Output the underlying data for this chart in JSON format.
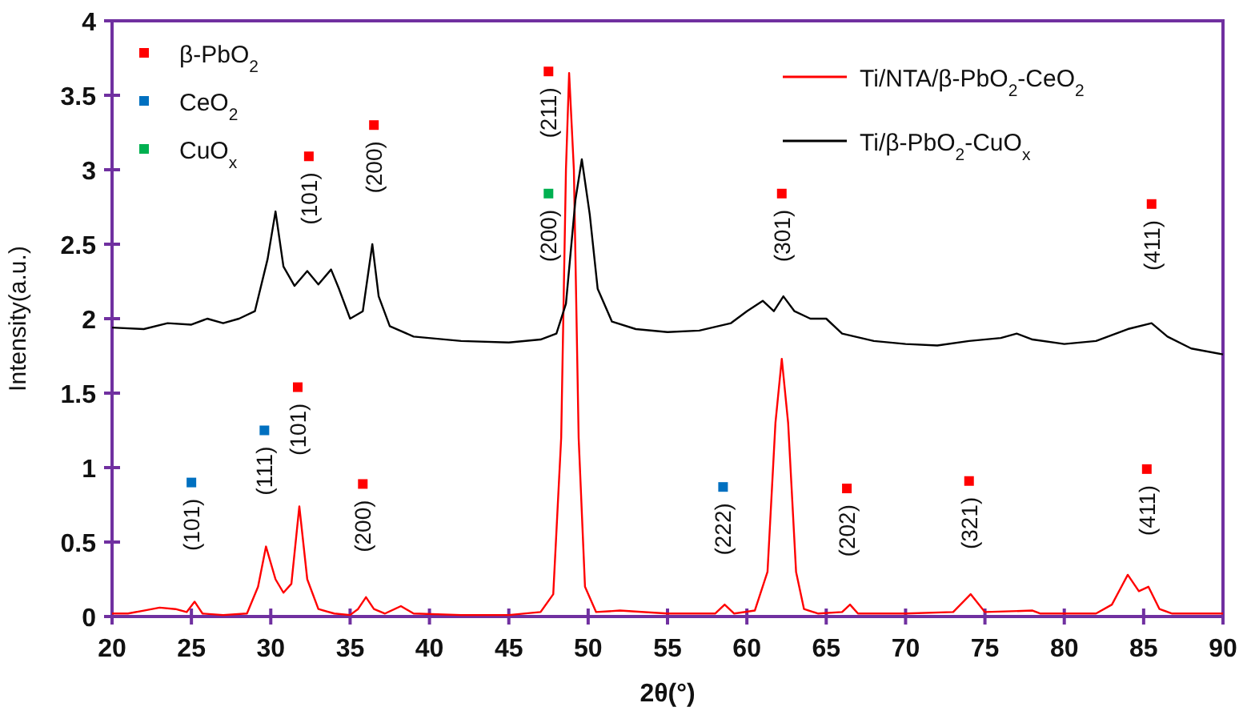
{
  "chart_data": {
    "type": "line",
    "xlabel": "2θ(°)",
    "ylabel": "Intensity(a.u.)",
    "xlim": [
      20,
      90
    ],
    "ylim": [
      0,
      4
    ],
    "xticks": [
      20,
      25,
      30,
      35,
      40,
      45,
      50,
      55,
      60,
      65,
      70,
      75,
      80,
      85,
      90
    ],
    "yticks": [
      0,
      0.5,
      1,
      1.5,
      2,
      2.5,
      3,
      3.5,
      4
    ],
    "legend": "top",
    "grid": false,
    "series": [
      {
        "name": "Ti/NTA/β-PbO$_{2}$-CeO$_{2}$",
        "color": "#ff0000",
        "x": [
          20,
          21,
          22,
          23,
          24,
          24.7,
          25.2,
          25.7,
          27,
          28.5,
          29.2,
          29.7,
          30.3,
          30.8,
          31.3,
          31.8,
          32.3,
          33,
          34,
          35,
          35.5,
          36,
          36.5,
          37.2,
          38.2,
          39,
          42,
          45,
          47,
          47.8,
          48.3,
          48.6,
          48.8,
          49.1,
          49.4,
          49.8,
          50.5,
          52,
          55,
          58,
          58.6,
          59.2,
          60.5,
          61.3,
          61.8,
          62.2,
          62.6,
          63.1,
          63.6,
          64.5,
          66,
          66.5,
          67,
          70,
          73,
          74.1,
          75,
          78,
          78.5,
          82,
          83,
          83.6,
          84,
          84.7,
          85.3,
          86,
          86.8,
          90
        ],
        "values": [
          0.02,
          0.02,
          0.04,
          0.06,
          0.05,
          0.03,
          0.1,
          0.02,
          0.01,
          0.02,
          0.2,
          0.47,
          0.25,
          0.16,
          0.22,
          0.74,
          0.25,
          0.05,
          0.02,
          0.01,
          0.05,
          0.13,
          0.05,
          0.02,
          0.07,
          0.02,
          0.01,
          0.01,
          0.03,
          0.15,
          1.2,
          3,
          3.65,
          3,
          1.2,
          0.2,
          0.03,
          0.04,
          0.02,
          0.02,
          0.08,
          0.02,
          0.04,
          0.3,
          1.3,
          1.73,
          1.3,
          0.3,
          0.05,
          0.02,
          0.03,
          0.08,
          0.02,
          0.02,
          0.03,
          0.15,
          0.03,
          0.04,
          0.02,
          0.02,
          0.08,
          0.2,
          0.28,
          0.17,
          0.2,
          0.05,
          0.02,
          0.02
        ]
      },
      {
        "name": "Ti/β-PbO$_{2}$-CuO$_{x}$",
        "color": "#000000",
        "x": [
          20,
          22,
          23.5,
          25,
          26,
          27,
          28,
          29,
          29.8,
          30.3,
          30.8,
          31.5,
          32.3,
          33,
          33.8,
          34.3,
          35,
          35.8,
          36.4,
          36.8,
          37.5,
          39,
          42,
          45,
          47,
          48,
          48.6,
          49.2,
          49.6,
          50.1,
          50.6,
          51.5,
          53,
          55,
          57,
          59,
          60,
          61,
          61.7,
          62.3,
          63,
          64,
          65,
          66,
          68,
          70,
          72,
          74,
          76,
          77,
          78,
          80,
          82,
          84,
          85.5,
          86.5,
          88,
          90
        ],
        "values": [
          1.94,
          1.93,
          1.97,
          1.96,
          2,
          1.97,
          2,
          2.05,
          2.4,
          2.72,
          2.35,
          2.22,
          2.32,
          2.23,
          2.33,
          2.2,
          2,
          2.05,
          2.5,
          2.15,
          1.95,
          1.88,
          1.85,
          1.84,
          1.86,
          1.9,
          2.1,
          2.8,
          3.07,
          2.7,
          2.2,
          1.98,
          1.93,
          1.91,
          1.92,
          1.97,
          2.05,
          2.12,
          2.05,
          2.15,
          2.05,
          2,
          2,
          1.9,
          1.85,
          1.83,
          1.82,
          1.85,
          1.87,
          1.9,
          1.86,
          1.83,
          1.85,
          1.93,
          1.97,
          1.88,
          1.8,
          1.76
        ]
      },
      {
        "type": "scatter",
        "name": "β-PbO$_{2}$",
        "color": "#ff0000",
        "marker": "square",
        "x": [
          32.4,
          36.5,
          47.5,
          62.2,
          85.5,
          31.7,
          35.8,
          66.3,
          74,
          85.2
        ],
        "values": [
          3.09,
          3.3,
          3.66,
          2.84,
          2.77,
          1.54,
          0.89,
          0.86,
          0.91,
          0.99
        ]
      },
      {
        "type": "scatter",
        "name": "CeO$_{2}$",
        "color": "#0070c0",
        "marker": "square",
        "x": [
          25,
          29.6,
          58.5
        ],
        "values": [
          0.9,
          1.25,
          0.87
        ]
      },
      {
        "type": "scatter",
        "name": "CuO$_{x}$",
        "color": "#00b050",
        "marker": "square",
        "x": [
          47.5
        ],
        "values": [
          2.84
        ]
      }
    ],
    "annotations": [
      {
        "text": "(101)",
        "x": 32.4,
        "y": 3.09
      },
      {
        "text": "(200)",
        "x": 36.5,
        "y": 3.3
      },
      {
        "text": "(211)",
        "x": 47.5,
        "y": 3.66
      },
      {
        "text": "(200)",
        "x": 47.5,
        "y": 2.84
      },
      {
        "text": "(301)",
        "x": 62.2,
        "y": 2.84
      },
      {
        "text": "(411)",
        "x": 85.5,
        "y": 2.77
      },
      {
        "text": "(101)",
        "x": 25,
        "y": 0.9
      },
      {
        "text": "(111)",
        "x": 29.6,
        "y": 1.25
      },
      {
        "text": "(101)",
        "x": 31.7,
        "y": 1.54
      },
      {
        "text": "(200)",
        "x": 35.8,
        "y": 0.89
      },
      {
        "text": "(222)",
        "x": 58.5,
        "y": 0.87
      },
      {
        "text": "(202)",
        "x": 66.3,
        "y": 0.86
      },
      {
        "text": "(321)",
        "x": 74,
        "y": 0.91
      },
      {
        "text": "(411)",
        "x": 85.2,
        "y": 0.99
      }
    ]
  }
}
